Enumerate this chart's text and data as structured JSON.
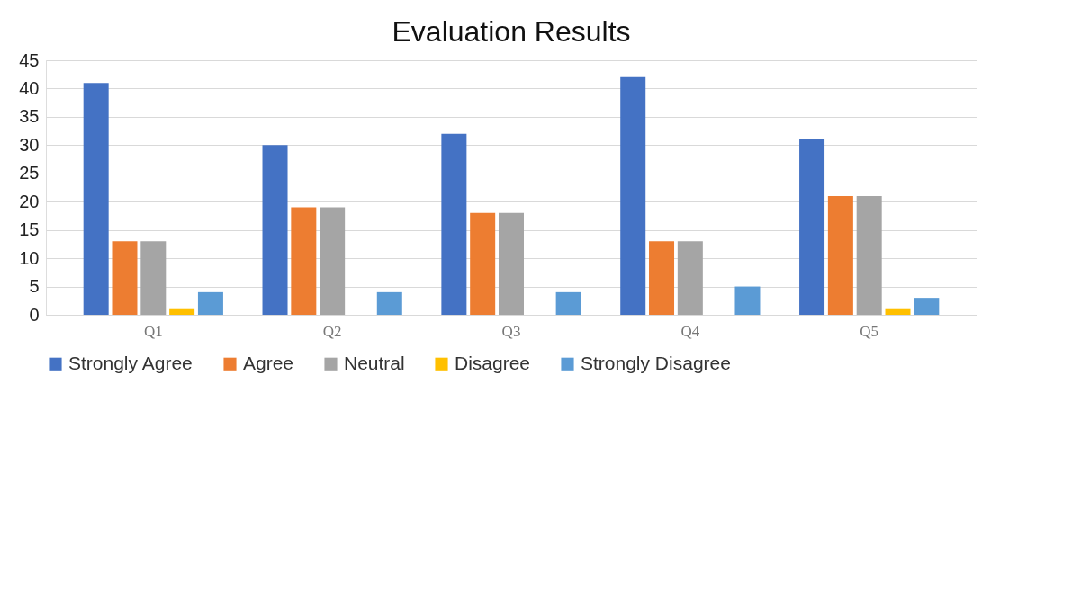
{
  "chart_data": {
    "type": "bar",
    "title": "Evaluation Results",
    "categories": [
      "Q1",
      "Q2",
      "Q3",
      "Q4",
      "Q5"
    ],
    "series": [
      {
        "name": "Strongly Agree",
        "color": "#4472c4",
        "values": [
          41,
          30,
          32,
          42,
          31
        ]
      },
      {
        "name": "Agree",
        "color": "#ed7d31",
        "values": [
          13,
          19,
          18,
          13,
          21
        ]
      },
      {
        "name": "Neutral",
        "color": "#a5a5a5",
        "values": [
          13,
          19,
          18,
          13,
          21
        ]
      },
      {
        "name": "Disagree",
        "color": "#ffc000",
        "values": [
          1,
          0,
          0,
          0,
          1
        ]
      },
      {
        "name": "Strongly Disagree",
        "color": "#5b9bd5",
        "values": [
          4,
          4,
          4,
          5,
          3
        ]
      }
    ],
    "ylim": [
      0,
      45
    ],
    "yticks": [
      0,
      5,
      10,
      15,
      20,
      25,
      30,
      35,
      40,
      45
    ],
    "grid": "y",
    "legend": "bottom"
  }
}
